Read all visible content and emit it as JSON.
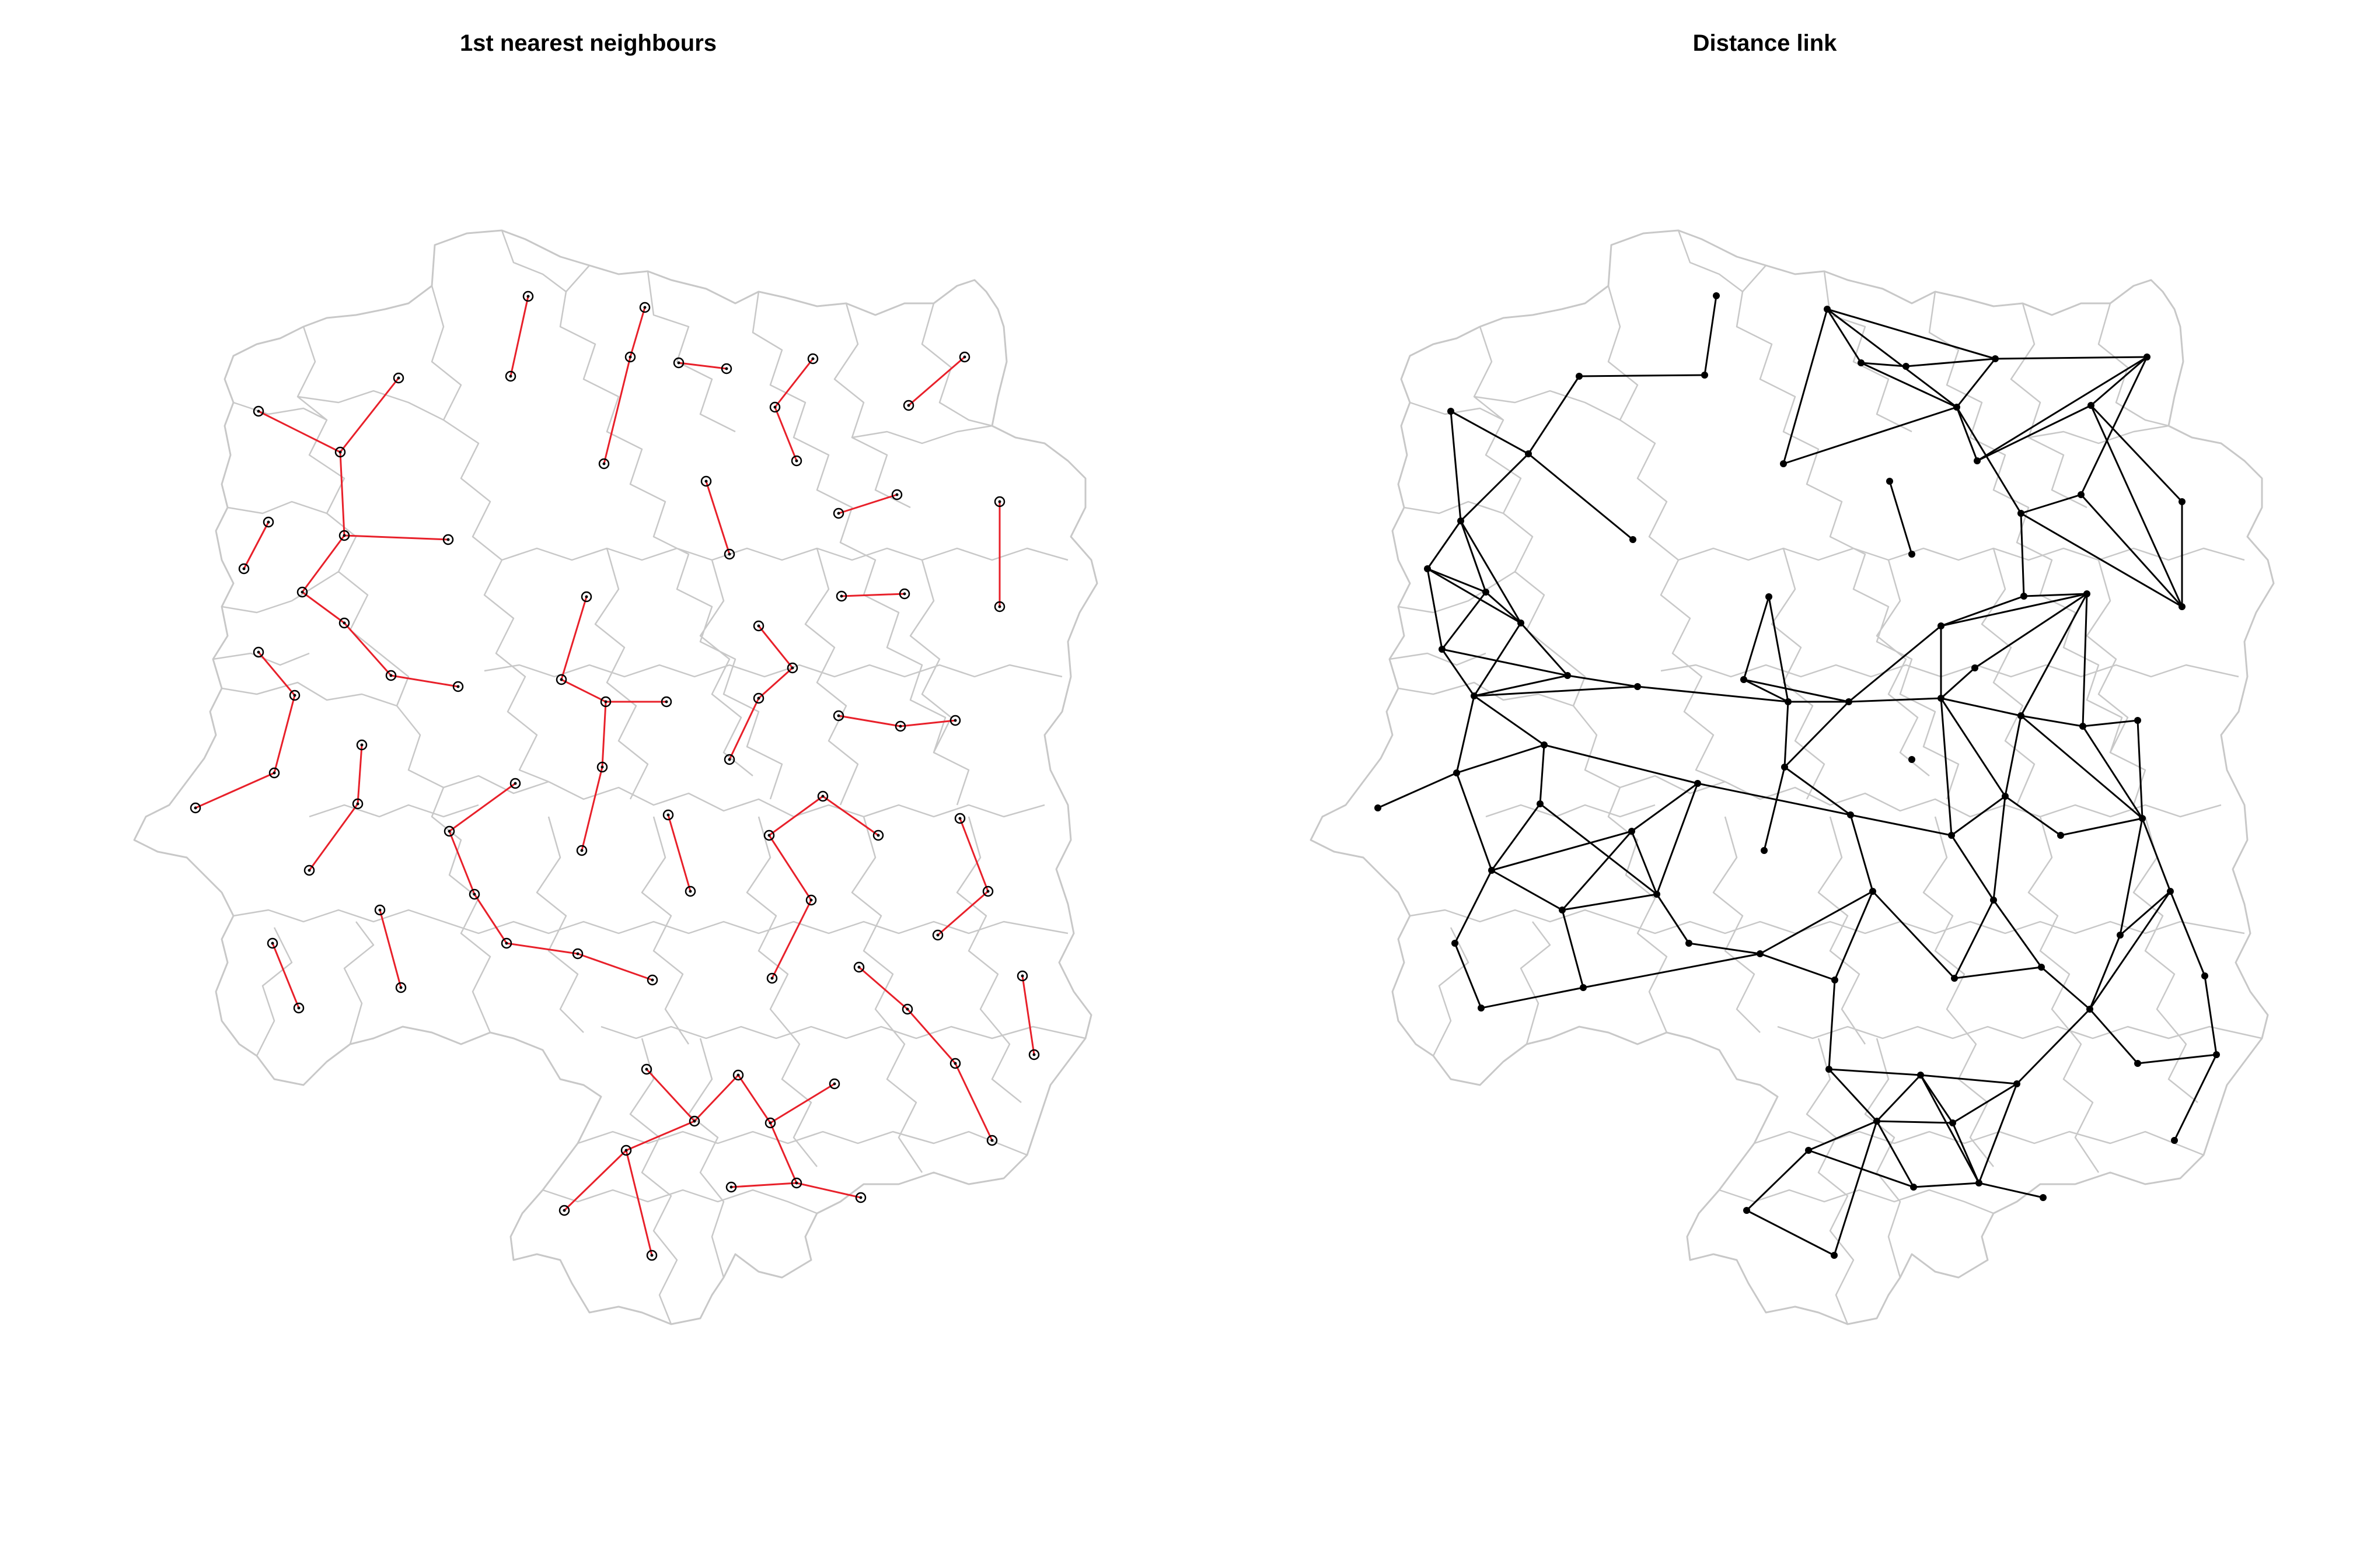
{
  "panels": [
    {
      "title": "1st nearest neighbours"
    },
    {
      "title": "Distance link"
    }
  ],
  "colors": {
    "boundary": "#c8c8c8",
    "knn_edge": "#e8202a",
    "distance_edge": "#000000",
    "node": "#000000"
  }
}
